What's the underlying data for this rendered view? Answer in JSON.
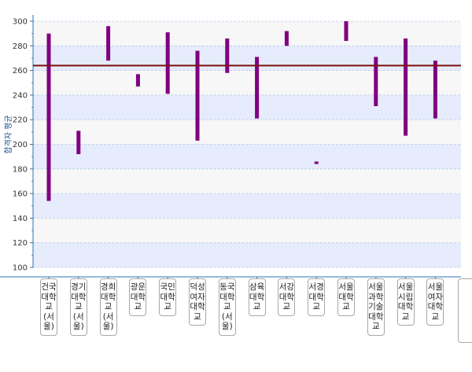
{
  "chart_data": {
    "type": "bar",
    "subtype": "floating-range",
    "ylabel": "합격자 평균",
    "ylim": [
      100,
      300
    ],
    "yticks": [
      100,
      120,
      140,
      160,
      180,
      200,
      220,
      240,
      260,
      280,
      300
    ],
    "grid": true,
    "legend": "none",
    "reference_line": 264,
    "categories": [
      "건국대학교(서울)",
      "경기대학교(서울)",
      "경희대학교(서울)",
      "광운대학교",
      "국민대학교",
      "덕성여자대학교",
      "동국대학교(서울)",
      "삼육대학교",
      "서강대학교",
      "서경대학교",
      "서울대학교",
      "서울과학기술대학교",
      "서울시립대학교",
      "서울여자대학교"
    ],
    "ranges": [
      [
        154,
        290
      ],
      [
        192,
        211
      ],
      [
        268,
        296
      ],
      [
        247,
        257
      ],
      [
        241,
        291
      ],
      [
        203,
        276
      ],
      [
        258,
        286
      ],
      [
        221,
        271
      ],
      [
        280,
        292
      ],
      [
        184,
        186
      ],
      [
        284,
        300
      ],
      [
        231,
        271
      ],
      [
        207,
        286
      ],
      [
        221,
        268
      ]
    ],
    "colors": {
      "bar": "#800080",
      "reference_line": "#7b1010",
      "band": "#e6ecfb",
      "grid": "#b8c8e8",
      "axis": "#2b72b5"
    }
  }
}
